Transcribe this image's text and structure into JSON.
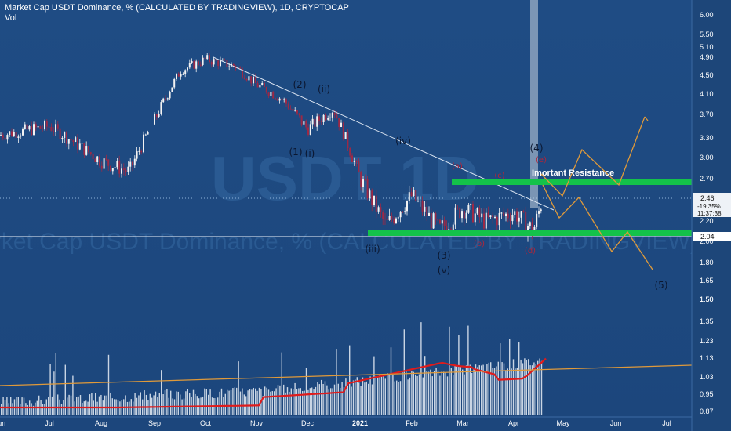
{
  "header": {
    "title": "Market Cap USDT Dominance, % (CALCULATED BY TRADINGVIEW), 1D, CRYPTOCAP",
    "volume_label": "Vol"
  },
  "watermark": {
    "symbol": "USDT",
    "timeframe": "1D",
    "description": "Market Cap USDT Dominance, % (CALCULATED BY TRADINGVIEW)"
  },
  "colors": {
    "background": "#1e4a80",
    "candle_red": "#9c2946",
    "candle_white": "#f2f2f2",
    "support_green": "#14c24a",
    "trend_white": "#d9e3f0",
    "projection_orange": "#e09a3a",
    "ma_red": "#e01b1b",
    "volume_white": "#e8eef6",
    "highlight_band": "#c9d3de"
  },
  "chart_data": [
    {
      "type": "candlestick",
      "pane": "price",
      "ylim": [
        1.5,
        6.2
      ],
      "yticks": [
        "6.00",
        "5.50",
        "5.10",
        "4.90",
        "4.50",
        "4.10",
        "3.70",
        "3.30",
        "3.00",
        "2.70",
        "2.20",
        "2.00",
        "1.80",
        "1.65",
        "1.50"
      ],
      "x_tick_labels": [
        "Jun",
        "Jul",
        "Aug",
        "Sep",
        "Oct",
        "Nov",
        "Dec",
        "2021",
        "Feb",
        "Mar",
        "Apr",
        "May",
        "Jun",
        "Jul"
      ],
      "series": [
        {
          "name": "USDT.D",
          "close_shape": [
            {
              "x": "Jun",
              "y": 3.35
            },
            {
              "x": "Jul",
              "y": 3.5
            },
            {
              "x": "Aug",
              "y": 2.95
            },
            {
              "x": "Aug-late",
              "y": 2.8
            },
            {
              "x": "Sep",
              "y": 3.6
            },
            {
              "x": "Sep-mid",
              "y": 4.6
            },
            {
              "x": "Oct",
              "y": 4.85
            },
            {
              "x": "Oct-mid",
              "y": 4.7
            },
            {
              "x": "Nov",
              "y": 4.3
            },
            {
              "x": "Nov-mid",
              "y": 4.0
            },
            {
              "x": "Dec",
              "y": 3.45
            },
            {
              "x": "Dec-mid",
              "y": 3.8
            },
            {
              "x": "2021",
              "y": 2.7
            },
            {
              "x": "2021-mid",
              "y": 2.15
            },
            {
              "x": "Feb",
              "y": 2.5
            },
            {
              "x": "Feb-mid",
              "y": 2.1
            },
            {
              "x": "Mar",
              "y": 2.35
            },
            {
              "x": "Mar-mid",
              "y": 2.2
            },
            {
              "x": "Apr",
              "y": 2.3
            },
            {
              "x": "Apr-mid",
              "y": 2.1
            },
            {
              "x": "Apr-late",
              "y": 2.46
            }
          ]
        }
      ],
      "last_price": "2.46",
      "last_change": "-19.35%",
      "countdown": "11:37:38",
      "horizontal_line_value": "2.04",
      "annotations": {
        "main_waves": [
          "(1)",
          "(2)",
          "(3)",
          "(4)",
          "(5)"
        ],
        "sub_waves": [
          "(i)",
          "(ii)",
          "(iii)",
          "(iv)",
          "(v)"
        ],
        "red_waves": [
          "(a)",
          "(b)",
          "(c)",
          "(d)",
          "(e)"
        ],
        "resistance_label": "Imortant Resistance"
      }
    },
    {
      "type": "bar",
      "pane": "volume",
      "ylim": [
        0.85,
        1.55
      ],
      "yticks": [
        "1.50",
        "1.35",
        "1.23",
        "1.13",
        "1.03",
        "0.95",
        "0.87"
      ],
      "series": [
        {
          "name": "Vol",
          "trend": "rising"
        }
      ]
    }
  ]
}
